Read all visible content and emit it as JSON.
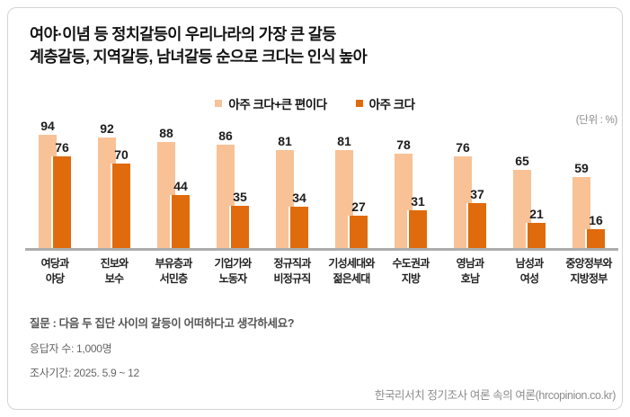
{
  "header": {
    "title_line1": "여야·이념 등 정치갈등이 우리나라의 가장 큰 갈등",
    "title_line2": "계층갈등, 지역갈등, 남녀갈등 순으로 크다는 인식 높아"
  },
  "chart_data": {
    "type": "bar",
    "unit_label": "(단위 : %)",
    "categories": [
      "여당과\n야당",
      "진보와\n보수",
      "부유층과\n서민층",
      "기업가와\n노동자",
      "정규직과\n비정규직",
      "기성세대와\n젊은세대",
      "수도권과\n지방",
      "영남과\n호남",
      "남성과\n여성",
      "중앙정부와\n지방정부"
    ],
    "series": [
      {
        "name": "아주 크다+큰 편이다",
        "color": "#F8C296",
        "values": [
          94,
          92,
          88,
          86,
          81,
          81,
          78,
          76,
          65,
          59
        ]
      },
      {
        "name": "아주 크다",
        "color": "#E06B0C",
        "values": [
          76,
          70,
          44,
          35,
          34,
          27,
          31,
          37,
          21,
          16
        ]
      }
    ],
    "ylim": [
      0,
      100
    ],
    "grid": false,
    "legend_position": "top-center"
  },
  "footer": {
    "question": "질문 : 다음 두 집단 사이의 갈등이 어떠하다고 생각하세요?",
    "respondents": "응답자 수: 1,000명",
    "period": "조사기간: 2025. 5.9 ~ 12",
    "source": "한국리서치 정기조사 여론 속의 여론(hrcopinion.co.kr)"
  },
  "colors": {
    "bar_light": "#F8C296",
    "bar_dark": "#E06B0C",
    "baseline": "#ACACAC",
    "card_border": "#D4D4D4"
  }
}
